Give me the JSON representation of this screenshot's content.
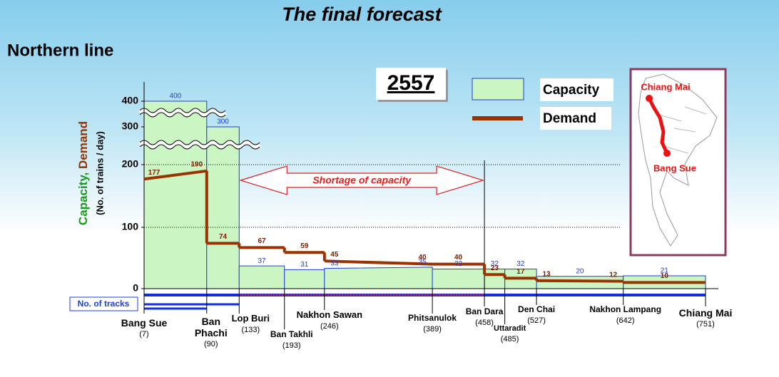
{
  "chart_data": {
    "type": "step",
    "title": "The final forecast",
    "subtitle": "Northern line",
    "year": "2557",
    "ylabel": [
      "Capacity,",
      "Demand"
    ],
    "ylabel_unit": "(No. of trains / day)",
    "annotation": "Shortage of capacity",
    "tracks_label": "No. of tracks",
    "ylim": [
      0,
      400
    ],
    "yticks": [
      0,
      100,
      200,
      300,
      400
    ],
    "grid": true,
    "stations": [
      {
        "name": "Bang Sue",
        "km": {
          "value": 7,
          "label": "(7)"
        }
      },
      {
        "name": "Ban Phachi",
        "km": {
          "value": 90,
          "label": "(90)"
        }
      },
      {
        "name": "Lop Buri",
        "km": {
          "value": 133,
          "label": "(133)"
        }
      },
      {
        "name": "Ban Takhli",
        "km": {
          "value": 193,
          "label": "(193)"
        }
      },
      {
        "name": "Nakhon Sawan",
        "km": {
          "value": 246,
          "label": "(246)"
        }
      },
      {
        "name": "Phitsanulok",
        "km": {
          "value": 389,
          "label": "(389)"
        }
      },
      {
        "name": "Ban Dara",
        "km": {
          "value": 458,
          "label": "(458)"
        }
      },
      {
        "name": "Uttaradit",
        "km": {
          "value": 485,
          "label": "(485)"
        }
      },
      {
        "name": "Den Chai",
        "km": {
          "value": 527,
          "label": "(527)"
        }
      },
      {
        "name": "Nakhon Lampang",
        "km": {
          "value": 642,
          "label": "(642)"
        }
      },
      {
        "name": "Chiang Mai",
        "km": {
          "value": 751,
          "label": "(751)"
        }
      }
    ],
    "series": [
      {
        "name": "Capacity",
        "color": "#2040d0",
        "fill": "#ccf5c4",
        "values": [
          [
            400
          ],
          [
            300
          ],
          [
            37
          ],
          [
            31
          ],
          [
            33,
            35
          ],
          [
            32
          ],
          [
            32
          ],
          [
            32
          ],
          [
            20
          ],
          [
            21
          ]
        ]
      },
      {
        "name": "Demand",
        "color": "#993300",
        "values": [
          [
            177,
            190
          ],
          [
            74
          ],
          [
            67
          ],
          [
            59
          ],
          [
            45,
            40
          ],
          [
            40
          ],
          [
            23
          ],
          [
            17
          ],
          [
            13,
            12
          ],
          [
            10
          ]
        ]
      }
    ],
    "map_labels": [
      "Chiang Mai",
      "Bang Sue"
    ]
  }
}
